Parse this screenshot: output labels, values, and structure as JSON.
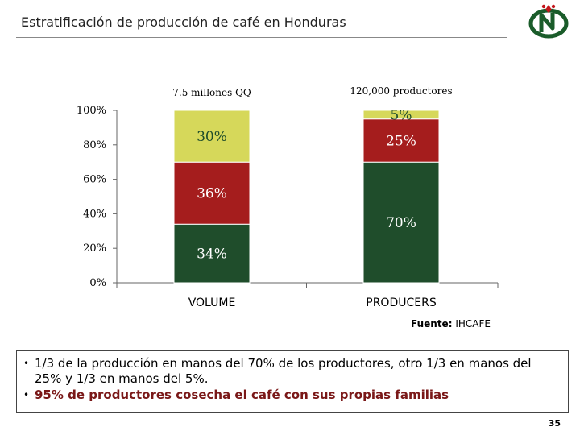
{
  "header": {
    "title": "Estratificación de producción de café en Honduras"
  },
  "logo": {
    "icon": "ihcafe-logo-icon",
    "colors": {
      "primary": "#1a5c2a",
      "accent": "#c4161c"
    }
  },
  "chart_data": {
    "type": "bar",
    "stacked": true,
    "categories": [
      "VOLUME",
      "PRODUCERS"
    ],
    "bar_headers": [
      "7.5 millones QQ",
      "120,000 productores"
    ],
    "yticks": [
      "0%",
      "20%",
      "40%",
      "60%",
      "80%",
      "100%"
    ],
    "ylim": [
      0,
      100
    ],
    "grid": false,
    "series": [
      {
        "color": "#1f4d2b",
        "text_color": "#ffffff",
        "values": [
          34,
          70
        ],
        "labels": [
          "34%",
          "70%"
        ]
      },
      {
        "color": "#a51d1d",
        "text_color": "#ffffff",
        "values": [
          36,
          25
        ],
        "labels": [
          "36%",
          "25%"
        ]
      },
      {
        "color": "#d6d85a",
        "text_color": "#1f4d2b",
        "values": [
          30,
          5
        ],
        "labels": [
          "30%",
          "5%"
        ]
      }
    ]
  },
  "source": {
    "label": "Fuente:",
    "value": "IHCAFE"
  },
  "bullets": [
    "1/3 de la producción en manos del 70% de los productores, otro 1/3 en manos del 25% y 1/3 en manos del 5%.",
    "95% de productores cosecha el café con sus propias familias"
  ],
  "page_number": "35"
}
